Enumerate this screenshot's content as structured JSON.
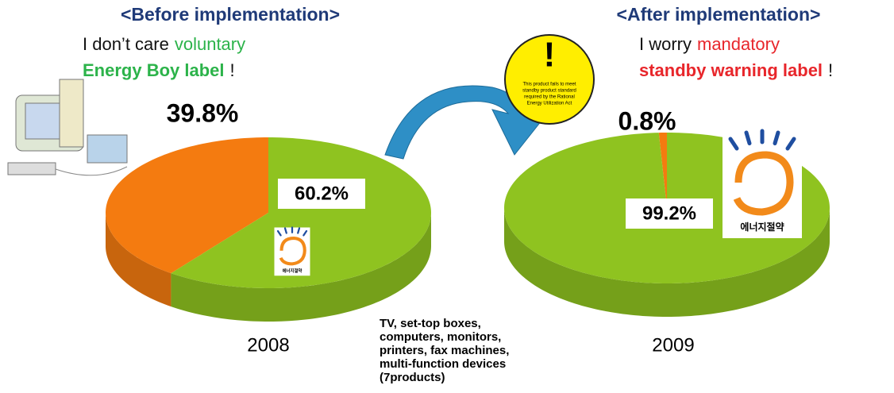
{
  "chart_data": [
    {
      "type": "pie",
      "title": "<Before implementation>",
      "caption": "2008",
      "annotation": [
        [
          "I don’t care",
          "voluntary"
        ],
        [
          "Energy Boy label",
          "!"
        ]
      ],
      "values": [
        39.8,
        60.2
      ],
      "value_labels": [
        "39.8%",
        "60.2%"
      ],
      "colors": [
        "#f47b10",
        "#8fc320"
      ]
    },
    {
      "type": "pie",
      "title": "<After implementation>",
      "caption": "2009",
      "annotation": [
        [
          "I worry",
          "mandatory"
        ],
        [
          "standby warning label",
          "!"
        ]
      ],
      "values": [
        0.8,
        99.2
      ],
      "value_labels": [
        "0.8%",
        "99.2%"
      ],
      "colors": [
        "#f47b10",
        "#8fc320"
      ]
    }
  ],
  "note": [
    "TV, set-top boxes,",
    "computers, monitors,",
    "printers, fax machines,",
    "multi-function devices",
    "(7products)"
  ],
  "sign": {
    "mark": "!",
    "lines": [
      "This product fails to meet",
      "standby product standard",
      "required by the Rational",
      "Energy Utilization Act"
    ]
  },
  "logo_text": "에너지절약"
}
